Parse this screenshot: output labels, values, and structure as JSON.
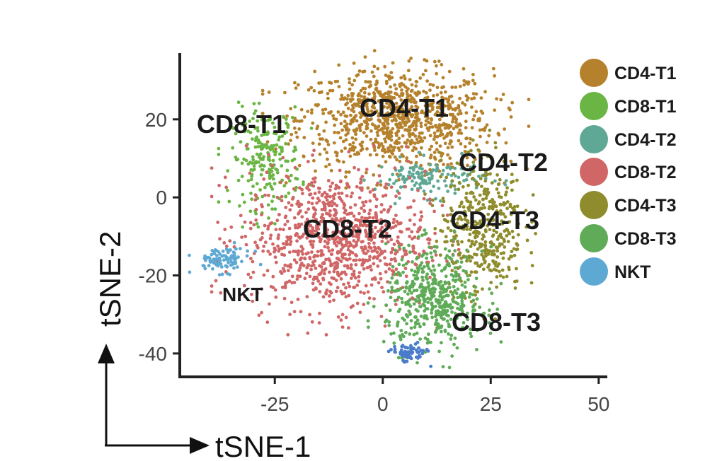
{
  "chart_data": {
    "type": "scatter",
    "xlabel": "tSNE-1",
    "ylabel": "tSNE-2",
    "xlim": [
      -47,
      52
    ],
    "ylim": [
      -46,
      37
    ],
    "xticks": [
      -25,
      0,
      25,
      50
    ],
    "yticks": [
      20,
      0,
      -20,
      -40
    ],
    "grid": false,
    "legend_position": "right",
    "series": [
      {
        "name": "CD4-T1",
        "color": "#B5812C",
        "center": [
          3,
          20
        ],
        "spread": [
          14,
          8
        ],
        "count": 900,
        "label": "CD4-T1"
      },
      {
        "name": "CD8-T1",
        "color": "#6AB543",
        "center": [
          -27,
          10
        ],
        "spread": [
          5,
          8
        ],
        "count": 220,
        "label": "CD8-T1"
      },
      {
        "name": "CD4-T2",
        "color": "#5FA895",
        "center": [
          11,
          5
        ],
        "spread": [
          8,
          3
        ],
        "count": 140,
        "label": "CD4-T2"
      },
      {
        "name": "CD8-T2",
        "color": "#D06666",
        "center": [
          -11,
          -11
        ],
        "spread": [
          13,
          11
        ],
        "count": 950,
        "label": "CD8-T2"
      },
      {
        "name": "CD4-T3",
        "color": "#8E8C2C",
        "center": [
          23,
          -7
        ],
        "spread": [
          6,
          11
        ],
        "count": 420,
        "label": "CD4-T3"
      },
      {
        "name": "CD8-T3",
        "color": "#5FAB57",
        "center": [
          12,
          -26
        ],
        "spread": [
          7,
          8
        ],
        "count": 480,
        "label": "CD8-T3"
      },
      {
        "name": "NKT",
        "color": "#5EA9D3",
        "center": [
          -37,
          -16
        ],
        "spread": [
          4,
          2
        ],
        "count": 90,
        "label": "NKT"
      }
    ],
    "extra_cluster": {
      "color": "#4A7CCB",
      "center": [
        6,
        -40
      ],
      "spread": [
        2.5,
        1.5
      ],
      "count": 70
    }
  }
}
